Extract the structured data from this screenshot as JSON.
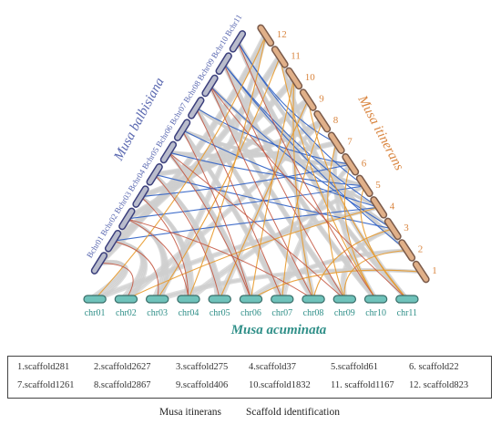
{
  "species": {
    "left": "Musa balbisiana",
    "right": "Musa itinerans",
    "bottom": "Musa acuminata"
  },
  "left_chromosomes": [
    "Bchr01",
    "Bchr02",
    "Bchr03",
    "Bchr04",
    "Bchr05",
    "Bchr06",
    "Bchr07",
    "Bchr08",
    "Bchr09",
    "Bchr10",
    "Bchr11"
  ],
  "right_chromosomes": [
    "1",
    "2",
    "3",
    "4",
    "5",
    "6",
    "7",
    "8",
    "9",
    "10",
    "11",
    "12"
  ],
  "bottom_chromosomes": [
    "chr01",
    "chr02",
    "chr03",
    "chr04",
    "chr05",
    "chr06",
    "chr07",
    "chr08",
    "chr09",
    "chr10",
    "chr11"
  ],
  "legend": [
    "1.scaffold281",
    "2.scaffold2627",
    "3.scaffold275",
    "4.scaffold37",
    "5.scaffold61",
    "6. scaffold22",
    "7.scaffold1261",
    "8.scaffold2867",
    "9.scaffold406",
    "10.scaffold1832",
    "11. scaffold1167",
    "12. scaffold823"
  ],
  "captions": {
    "left": "Musa itinerans",
    "right": "Scaffold identification"
  },
  "colors": {
    "left_chrom_fill": "#b9bccc",
    "left_chrom_stroke": "#3b3f7c",
    "left_text": "#5a68b0",
    "right_chrom_fill": "#e0b089",
    "right_chrom_stroke": "#7a5a4a",
    "right_text": "#d9853f",
    "bottom_chrom_fill": "#6fc2ba",
    "bottom_chrom_stroke": "#3a6f6a",
    "bottom_text": "#2f8f88",
    "blue_link": "#2d5fc4",
    "orange_link": "#e89a2c",
    "red_link": "#c2503a",
    "grey_link": "#cfcfcf"
  }
}
